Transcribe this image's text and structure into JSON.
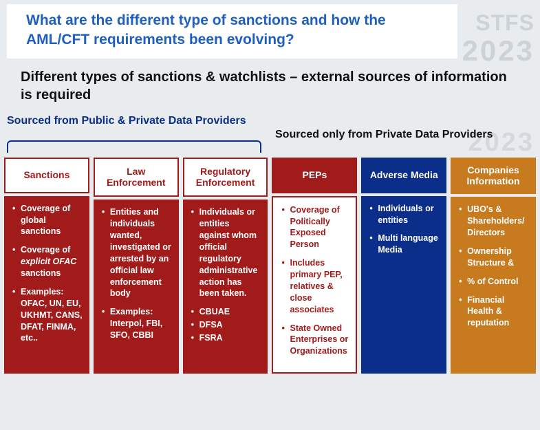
{
  "watermark": {
    "line1": "STFS",
    "line2": "2023"
  },
  "title": "What are the different type of sanctions and how the AML/CFT requirements been evolving?",
  "subtitle": "Different types of sanctions & watchlists – external sources of information is required",
  "sourceLeft": "Sourced from Public & Private Data Providers",
  "sourceRight": "Sourced only from Private Data Providers",
  "colors": {
    "red": "#a11b1b",
    "blue": "#0b2e8a",
    "orange": "#c77a1e",
    "titleBlue": "#1e5fbf",
    "bg": "#e8ecef"
  },
  "columns": [
    {
      "header": "Sanctions",
      "headerStyle": "hdr-outline-red",
      "bodyStyle": "body-red",
      "items": [
        "Coverage of global sanctions",
        "Coverage of <em class='ofac'>explicit OFAC</em> sanctions",
        "Examples: OFAC, UN, EU, UKHMT, CANS, DFAT, FINMA,  etc.."
      ]
    },
    {
      "header": "Law Enforcement",
      "headerStyle": "hdr-outline-red",
      "bodyStyle": "body-red",
      "items": [
        "Entities and individuals wanted, investigated or arrested by an official law enforcement body",
        "Examples: Interpol, FBI, SFO, CBBI"
      ]
    },
    {
      "header": "Regulatory Enforcement",
      "headerStyle": "hdr-outline-red",
      "bodyStyle": "body-red",
      "items": [
        "Individuals or entities against whom official regulatory administrative action has been taken.",
        "CBUAE",
        "DFSA",
        "FSRA"
      ]
    },
    {
      "header": "PEPs",
      "headerStyle": "hdr-red",
      "bodyStyle": "body-white-red",
      "items": [
        "Coverage of Politically Exposed Person",
        "Includes primary PEP, relatives & close associates",
        "State Owned Enterprises or Organizations"
      ]
    },
    {
      "header": "Adverse Media",
      "headerStyle": "hdr-blue",
      "bodyStyle": "body-blue",
      "items": [
        "Individuals or entities",
        "Multi language Media"
      ]
    },
    {
      "header": "Companies Information",
      "headerStyle": "hdr-orange",
      "bodyStyle": "body-orange",
      "items": [
        "UBO's & Shareholders/ Directors",
        "Ownership Structure &",
        "% of Control",
        "Financial Health & reputation"
      ]
    }
  ]
}
